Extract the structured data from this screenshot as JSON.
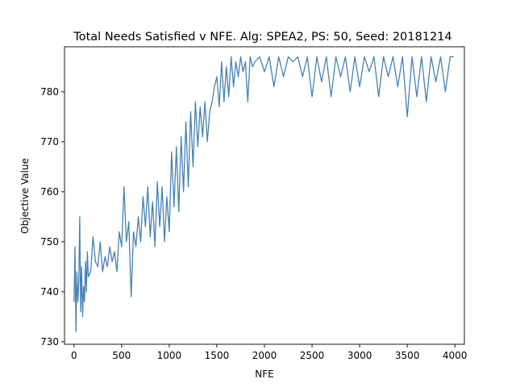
{
  "chart_data": {
    "type": "line",
    "title": "Total Needs Satisfied v NFE. Alg: SPEA2, PS: 50, Seed: 20181214",
    "xlabel": "NFE",
    "ylabel": "Objective Value",
    "xlim": [
      -100,
      4100
    ],
    "ylim": [
      729.5,
      789
    ],
    "xticks": [
      0,
      500,
      1000,
      1500,
      2000,
      2500,
      3000,
      3500,
      4000
    ],
    "yticks": [
      730,
      740,
      750,
      760,
      770,
      780
    ],
    "grid": false,
    "line_color": "#4682b4",
    "series": [
      {
        "x": [
          0,
          10,
          20,
          30,
          40,
          50,
          60,
          70,
          80,
          90,
          100,
          110,
          120,
          130,
          140,
          150,
          175,
          200,
          225,
          250,
          275,
          300,
          325,
          350,
          375,
          400,
          425,
          450,
          475,
          500,
          525,
          550,
          575,
          600,
          625,
          650,
          675,
          700,
          725,
          750,
          775,
          800,
          825,
          850,
          875,
          900,
          925,
          950,
          975,
          1000,
          1025,
          1050,
          1075,
          1100,
          1125,
          1150,
          1175,
          1200,
          1225,
          1250,
          1275,
          1300,
          1325,
          1350,
          1375,
          1400,
          1425,
          1450,
          1475,
          1500,
          1525,
          1550,
          1575,
          1600,
          1625,
          1650,
          1675,
          1700,
          1725,
          1750,
          1775,
          1800,
          1825,
          1850,
          1875,
          1900,
          1950,
          2000,
          2050,
          2100,
          2150,
          2200,
          2250,
          2300,
          2350,
          2400,
          2450,
          2500,
          2550,
          2600,
          2650,
          2700,
          2750,
          2800,
          2850,
          2900,
          2950,
          3000,
          3050,
          3100,
          3150,
          3200,
          3250,
          3300,
          3350,
          3400,
          3450,
          3500,
          3550,
          3600,
          3650,
          3700,
          3750,
          3800,
          3850,
          3900,
          3950,
          3990
        ],
        "values": [
          738,
          749,
          732,
          744,
          738,
          742,
          755,
          736,
          745,
          735,
          741,
          738,
          746,
          740,
          748,
          743,
          744,
          751,
          746,
          745,
          750,
          744,
          747,
          745,
          749,
          746,
          748,
          744,
          752,
          749,
          761,
          750,
          754,
          739,
          752,
          749,
          755,
          750,
          759,
          753,
          761,
          751,
          758,
          749,
          762,
          753,
          761,
          750,
          759,
          752,
          768,
          757,
          769,
          756,
          771,
          760,
          774,
          761,
          776,
          765,
          778,
          769,
          777,
          771,
          778,
          770,
          776,
          778,
          781,
          783,
          777,
          786,
          778,
          785,
          779,
          787,
          781,
          786,
          783,
          787,
          784,
          786,
          778,
          787,
          785,
          786,
          787,
          784,
          787,
          781,
          787,
          783,
          787,
          786,
          787,
          783,
          787,
          779,
          787,
          782,
          787,
          779,
          787,
          783,
          787,
          780,
          787,
          781,
          787,
          784,
          787,
          779,
          787,
          783,
          787,
          781,
          787,
          775,
          787,
          779,
          787,
          778,
          787,
          782,
          787,
          780,
          787,
          787
        ]
      }
    ]
  }
}
